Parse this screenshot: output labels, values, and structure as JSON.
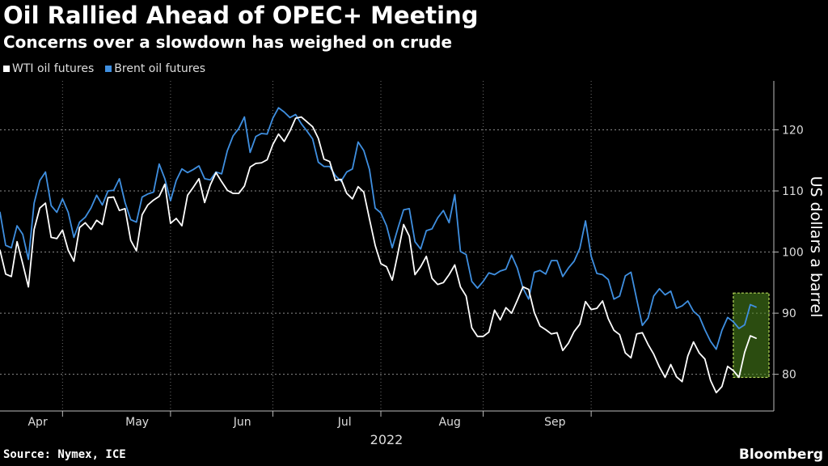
{
  "title": "Oil Rallied Ahead of OPEC+ Meeting",
  "subtitle": "Concerns over a slowdown has weighed on crude",
  "source": "Source: Nymex, ICE",
  "brand": "Bloomberg",
  "chart_data": {
    "type": "line",
    "title": "Oil Rallied Ahead of OPEC+ Meeting",
    "subtitle": "Concerns over a slowdown has weighed on crude",
    "ylabel": "US dollars a barrel",
    "xlabel": "2022",
    "ylim": [
      74,
      128
    ],
    "yticks": [
      80,
      90,
      100,
      110,
      120
    ],
    "xticks": [
      "Apr",
      "May",
      "Jun",
      "Jul",
      "Aug",
      "Sep"
    ],
    "grid": true,
    "legend_position": "top-left",
    "highlight": {
      "x_start_index": 129,
      "x_end_index": 133,
      "y_range": [
        79.5,
        93.3
      ],
      "color": "#4e8a1e"
    },
    "series": [
      {
        "name": "WTI oil futures",
        "color": "#ffffff",
        "values": [
          100.3,
          96.4,
          96.0,
          101.7,
          98.1,
          94.3,
          103.7,
          107.2,
          108.0,
          102.4,
          102.2,
          103.6,
          100.3,
          98.5,
          104.0,
          104.8,
          103.7,
          105.2,
          104.5,
          108.9,
          109.0,
          106.8,
          107.1,
          101.9,
          100.2,
          106.1,
          107.7,
          108.5,
          109.1,
          111.1,
          104.7,
          105.5,
          104.3,
          109.3,
          110.6,
          112.0,
          108.1,
          111.0,
          113.0,
          111.5,
          110.1,
          109.6,
          109.6,
          110.8,
          113.9,
          114.5,
          114.6,
          115.1,
          117.6,
          119.3,
          118.1,
          119.8,
          121.9,
          122.1,
          121.3,
          120.5,
          118.6,
          115.2,
          114.8,
          111.7,
          111.9,
          109.6,
          108.7,
          110.7,
          109.8,
          105.4,
          101.1,
          98.1,
          97.6,
          95.4,
          99.8,
          104.5,
          102.6,
          96.3,
          97.6,
          99.3,
          95.7,
          94.7,
          95.0,
          96.3,
          97.9,
          94.3,
          92.8,
          87.6,
          86.2,
          86.2,
          86.9,
          90.5,
          88.9,
          90.9,
          90.0,
          92.1,
          94.3,
          93.9,
          90.1,
          87.9,
          87.3,
          86.6,
          86.8,
          83.9,
          85.1,
          87.0,
          88.2,
          91.9,
          90.6,
          90.8,
          92.0,
          89.1,
          87.2,
          86.5,
          83.5,
          82.7,
          86.6,
          86.8,
          84.9,
          83.3,
          81.2,
          79.5,
          81.6,
          79.6,
          78.8,
          83.0,
          85.3,
          83.5,
          82.5,
          79.0,
          77.0,
          78.0,
          81.3,
          80.6,
          79.5,
          83.6,
          86.3,
          85.9
        ]
      },
      {
        "name": "Brent oil futures",
        "color": "#3f8fe0",
        "values": [
          106.5,
          101.1,
          100.7,
          104.3,
          102.9,
          98.8,
          108.0,
          111.7,
          113.1,
          107.6,
          106.5,
          108.7,
          106.5,
          102.4,
          104.9,
          105.7,
          107.2,
          109.3,
          107.7,
          110.0,
          110.1,
          112.0,
          108.1,
          105.3,
          104.9,
          109.0,
          109.5,
          109.8,
          114.4,
          112.0,
          108.4,
          111.7,
          113.6,
          113.0,
          113.5,
          114.1,
          112.0,
          111.8,
          113.1,
          112.8,
          116.6,
          119.0,
          120.2,
          122.1,
          116.3,
          118.9,
          119.4,
          119.3,
          121.9,
          123.6,
          122.9,
          122.0,
          122.5,
          121.0,
          119.8,
          118.5,
          114.7,
          114.0,
          114.0,
          112.5,
          111.6,
          113.1,
          113.6,
          118.0,
          116.6,
          113.5,
          107.2,
          106.4,
          104.3,
          100.7,
          103.9,
          106.9,
          107.1,
          101.7,
          100.5,
          103.5,
          103.8,
          105.6,
          106.8,
          104.8,
          109.4,
          100.1,
          99.6,
          95.2,
          94.1,
          95.2,
          96.6,
          96.3,
          96.9,
          97.2,
          99.5,
          97.4,
          94.1,
          92.3,
          96.7,
          97.0,
          96.4,
          98.6,
          98.6,
          96.0,
          97.4,
          98.5,
          100.6,
          105.1,
          99.3,
          96.5,
          96.3,
          95.5,
          92.3,
          92.8,
          96.1,
          96.7,
          92.3,
          88.0,
          89.2,
          92.8,
          94.0,
          93.0,
          93.6,
          90.8,
          91.2,
          92.0,
          90.3,
          89.5,
          87.3,
          85.4,
          84.1,
          87.2,
          89.3,
          88.6,
          87.5,
          88.1,
          91.4,
          91.0
        ]
      }
    ]
  },
  "legend": [
    {
      "label": "WTI oil futures",
      "color": "#ffffff"
    },
    {
      "label": "Brent oil futures",
      "color": "#3f8fe0"
    }
  ]
}
